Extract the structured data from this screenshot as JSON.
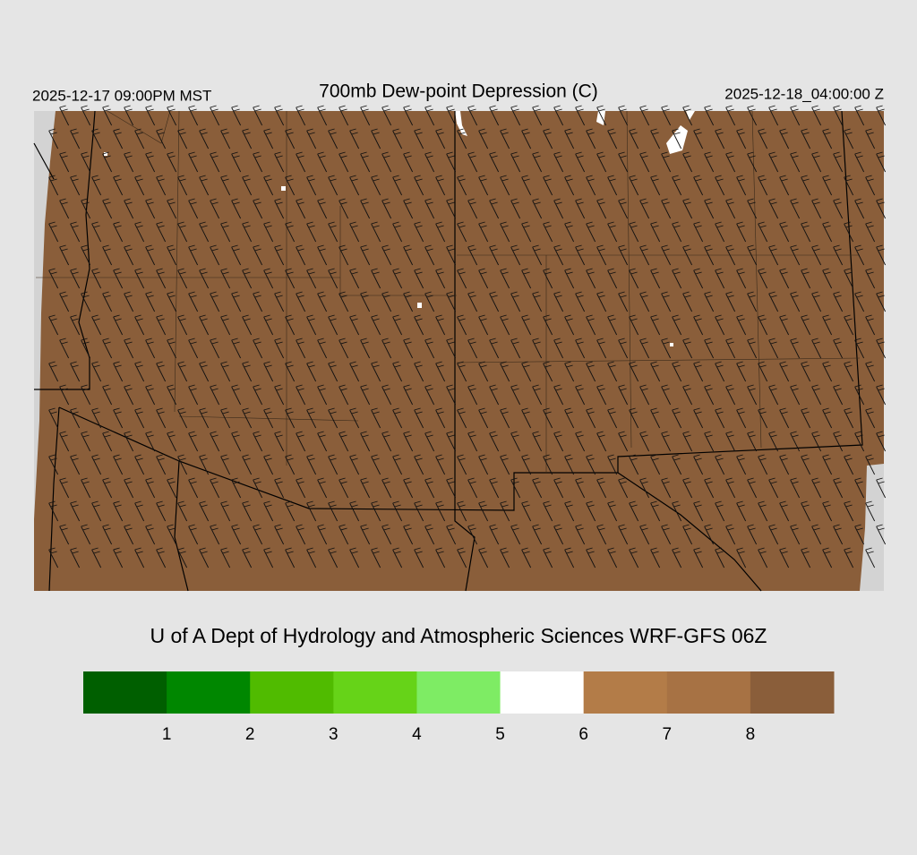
{
  "header": {
    "title": "700mb Dew-point Depression (C)",
    "local_time": "2025-12-17 09:00PM MST",
    "valid_time": "2025-12-18_04:00:00 Z"
  },
  "credit": "U of A Dept of Hydrology and Atmospheric Sciences WRF-GFS 06Z",
  "colorbar": {
    "colors": [
      "#005f00",
      "#008700",
      "#50bb00",
      "#66d318",
      "#7eec64",
      "#ffffff",
      "#b37c48",
      "#a77244",
      "#8a5e3a"
    ],
    "ticks": [
      1,
      2,
      3,
      4,
      5,
      6,
      7,
      8
    ]
  },
  "map_fill": "#8a5e3a"
}
